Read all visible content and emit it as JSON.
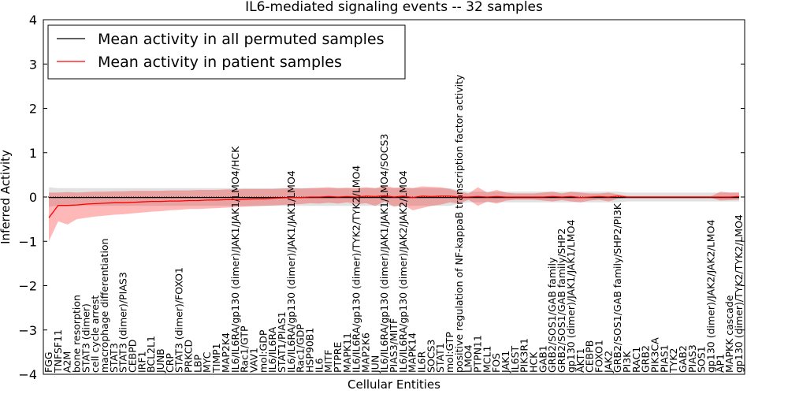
{
  "chart_data": {
    "type": "line",
    "title": "IL6-mediated signaling events -- 32 samples",
    "xlabel": "Cellular Entities",
    "ylabel": "Inferred Activity",
    "ylim": [
      -4,
      4
    ],
    "yticks": [
      4,
      3,
      2,
      1,
      0,
      -1,
      -2,
      -3,
      -4
    ],
    "ytick_labels": [
      "4",
      "3",
      "2",
      "1",
      "0",
      "−1",
      "−2",
      "−3",
      "−4"
    ],
    "legend_position": "top-left",
    "categories": [
      "FGG",
      "TNFSF11",
      "A2M",
      "bone resorption",
      "STAT3 (dimer)",
      "cell cycle arrest",
      "macrophage differentiation",
      "STAT3",
      "STAT3 (dimer)/PIAS3",
      "CEBPD",
      "IRF1",
      "BCL2L1",
      "JUNB",
      "CRP",
      "STAT3 (dimer)/FOXO1",
      "PRKCD",
      "LBP",
      "MYC",
      "TIMP1",
      "MAP2K4",
      "IL6/IL6RA/gp130 (dimer)/JAK1/JAK1/LMO4/HCK",
      "Rac1/GTP",
      "VAV1",
      "mol:GDP",
      "IL6/IL6RA",
      "STAT1/PIAS1",
      "IL6/IL6RA/gp130 (dimer)/JAK1/JAK1/LMO4",
      "Rac1/GDP",
      "HSP90B1",
      "IL6",
      "MITF",
      "PTPRE",
      "MAPK11",
      "IL6/IL6RA/gp130 (dimer)/TYK2/TYK2/LMO4",
      "MAP2K6",
      "JUN",
      "IL6/IL6RA/gp130 (dimer)/JAK1/JAK1/LMO4/SOCS3",
      "PIAS3/MITF",
      "IL6/IL6RA/gp130 (dimer)/JAK2/JAK2/LMO4",
      "MAPK14",
      "IL6R",
      "SOCS3",
      "STAT1",
      "mol:GTP",
      "positive regulation of NF-kappaB transcription factor activity",
      "LMO4",
      "PTPN11",
      "MCL1",
      "FOS",
      "JAK1",
      "IL6ST",
      "PIK3R1",
      "HCK",
      "GAB1",
      "GRB2/SOS1/GAB family",
      "GRB2/SOS1/GAB family/SHP2",
      "gp130 (dimer)/JAK1/JAK1/LMO4",
      "AKT1",
      "CEBPB",
      "FOXO1",
      "JAK2",
      "GRB2/SOS1/GAB family/SHP2/PI3K",
      "PI3K",
      "RAC1",
      "GRB2",
      "PIK3CA",
      "PIAS1",
      "TYK2",
      "GAB2",
      "PIAS3",
      "SOS1",
      "gp130 (dimer)/JAK2/JAK2/LMO4",
      "AP1",
      "MAPKK cascade",
      "gp130 (dimer)/TYK2/TYK2/LMO4"
    ],
    "series": [
      {
        "name": "Mean activity in all permuted samples",
        "color": "#000000",
        "values": [
          -0.01,
          -0.01,
          -0.01,
          -0.01,
          -0.01,
          -0.01,
          -0.01,
          -0.01,
          -0.01,
          -0.01,
          -0.01,
          -0.01,
          -0.01,
          -0.01,
          -0.01,
          -0.01,
          -0.01,
          -0.01,
          -0.01,
          -0.01,
          -0.01,
          -0.01,
          -0.01,
          -0.01,
          -0.01,
          -0.01,
          -0.01,
          -0.01,
          -0.01,
          -0.01,
          -0.01,
          -0.01,
          -0.01,
          -0.01,
          -0.01,
          -0.01,
          -0.01,
          -0.01,
          -0.01,
          -0.01,
          -0.01,
          -0.01,
          -0.01,
          -0.01,
          -0.01,
          -0.01,
          -0.01,
          -0.01,
          -0.01,
          -0.01,
          -0.01,
          -0.01,
          -0.01,
          -0.01,
          -0.01,
          -0.01,
          -0.01,
          -0.01,
          -0.01,
          -0.01,
          -0.01,
          -0.01,
          -0.01,
          -0.01,
          -0.01,
          -0.01,
          -0.01,
          -0.01,
          -0.01,
          -0.01,
          -0.01,
          -0.01,
          -0.01,
          -0.01,
          -0.01
        ],
        "band_low": [
          -0.22,
          -0.2,
          -0.2,
          -0.2,
          -0.2,
          -0.2,
          -0.2,
          -0.2,
          -0.2,
          -0.2,
          -0.2,
          -0.2,
          -0.2,
          -0.2,
          -0.2,
          -0.2,
          -0.2,
          -0.2,
          -0.2,
          -0.2,
          -0.2,
          -0.2,
          -0.2,
          -0.2,
          -0.2,
          -0.2,
          -0.2,
          -0.2,
          -0.2,
          -0.2,
          -0.2,
          -0.2,
          -0.2,
          -0.2,
          -0.2,
          -0.2,
          -0.2,
          -0.2,
          -0.2,
          -0.2,
          -0.2,
          -0.2,
          -0.2,
          -0.2,
          -0.15,
          -0.12,
          -0.12,
          -0.12,
          -0.12,
          -0.12,
          -0.12,
          -0.12,
          -0.12,
          -0.12,
          -0.12,
          -0.12,
          -0.12,
          -0.12,
          -0.12,
          -0.12,
          -0.12,
          -0.12,
          -0.1,
          -0.1,
          -0.1,
          -0.1,
          -0.1,
          -0.1,
          -0.1,
          -0.1,
          -0.1,
          -0.1,
          -0.1,
          -0.1,
          -0.1
        ],
        "band_high": [
          0.22,
          0.2,
          0.2,
          0.2,
          0.2,
          0.2,
          0.2,
          0.2,
          0.2,
          0.2,
          0.2,
          0.2,
          0.2,
          0.2,
          0.2,
          0.2,
          0.2,
          0.2,
          0.2,
          0.2,
          0.2,
          0.2,
          0.2,
          0.2,
          0.2,
          0.2,
          0.2,
          0.2,
          0.2,
          0.2,
          0.2,
          0.2,
          0.2,
          0.2,
          0.2,
          0.2,
          0.2,
          0.2,
          0.2,
          0.2,
          0.2,
          0.2,
          0.2,
          0.2,
          0.15,
          0.12,
          0.12,
          0.12,
          0.12,
          0.12,
          0.12,
          0.12,
          0.12,
          0.12,
          0.12,
          0.12,
          0.12,
          0.12,
          0.12,
          0.12,
          0.12,
          0.12,
          0.1,
          0.1,
          0.1,
          0.1,
          0.1,
          0.1,
          0.1,
          0.1,
          0.1,
          0.1,
          0.1,
          0.1,
          0.1
        ]
      },
      {
        "name": "Mean activity in patient samples",
        "color": "#ff0000",
        "values": [
          -0.47,
          -0.19,
          -0.19,
          -0.18,
          -0.16,
          -0.15,
          -0.14,
          -0.13,
          -0.13,
          -0.12,
          -0.11,
          -0.1,
          -0.1,
          -0.09,
          -0.09,
          -0.08,
          -0.08,
          -0.07,
          -0.07,
          -0.06,
          -0.06,
          -0.05,
          -0.04,
          -0.04,
          -0.03,
          -0.02,
          -0.01,
          -0.01,
          0.0,
          0.0,
          0.01,
          0.0,
          0.01,
          0.0,
          0.02,
          0.01,
          0.03,
          0.0,
          0.02,
          -0.01,
          0.02,
          0.01,
          0.02,
          0.02,
          0.0,
          0.0,
          0.01,
          0.0,
          0.01,
          0.0,
          0.0,
          0.0,
          0.0,
          0.0,
          0.01,
          0.0,
          0.01,
          -0.01,
          0.0,
          0.01,
          0.0,
          0.02,
          0.0,
          0.0,
          0.0,
          0.0,
          0.0,
          0.0,
          0.0,
          0.0,
          0.0,
          0.0,
          0.0,
          0.0,
          0.01
        ],
        "band_low": [
          -1.0,
          -0.55,
          -0.62,
          -0.5,
          -0.47,
          -0.44,
          -0.42,
          -0.4,
          -0.39,
          -0.37,
          -0.35,
          -0.33,
          -0.32,
          -0.3,
          -0.29,
          -0.27,
          -0.27,
          -0.26,
          -0.25,
          -0.24,
          -0.23,
          -0.22,
          -0.21,
          -0.2,
          -0.19,
          -0.18,
          -0.17,
          -0.16,
          -0.14,
          -0.15,
          -0.13,
          -0.15,
          -0.12,
          -0.16,
          -0.14,
          -0.2,
          -0.1,
          -0.22,
          -0.18,
          -0.3,
          -0.25,
          -0.2,
          -0.17,
          -0.12,
          -0.15,
          -0.06,
          -0.2,
          -0.1,
          -0.15,
          -0.08,
          -0.06,
          -0.06,
          -0.06,
          -0.08,
          -0.1,
          -0.07,
          -0.1,
          -0.12,
          -0.08,
          -0.06,
          -0.1,
          -0.04,
          -0.02,
          -0.02,
          -0.02,
          -0.02,
          -0.02,
          -0.02,
          -0.02,
          -0.02,
          -0.02,
          -0.02,
          -0.08,
          -0.07,
          -0.06
        ],
        "band_high": [
          0.1,
          0.1,
          0.11,
          0.1,
          0.11,
          0.12,
          0.12,
          0.13,
          0.13,
          0.14,
          0.14,
          0.14,
          0.14,
          0.15,
          0.15,
          0.15,
          0.16,
          0.16,
          0.16,
          0.17,
          0.17,
          0.18,
          0.18,
          0.18,
          0.18,
          0.19,
          0.2,
          0.19,
          0.2,
          0.21,
          0.22,
          0.2,
          0.21,
          0.2,
          0.22,
          0.2,
          0.25,
          0.21,
          0.22,
          0.2,
          0.24,
          0.23,
          0.22,
          0.18,
          0.12,
          0.08,
          0.22,
          0.1,
          0.16,
          0.1,
          0.08,
          0.08,
          0.08,
          0.1,
          0.12,
          0.08,
          0.12,
          0.1,
          0.08,
          0.08,
          0.1,
          0.06,
          0.02,
          0.02,
          0.02,
          0.02,
          0.02,
          0.02,
          0.02,
          0.02,
          0.02,
          0.02,
          0.12,
          0.1,
          0.1
        ]
      }
    ]
  }
}
